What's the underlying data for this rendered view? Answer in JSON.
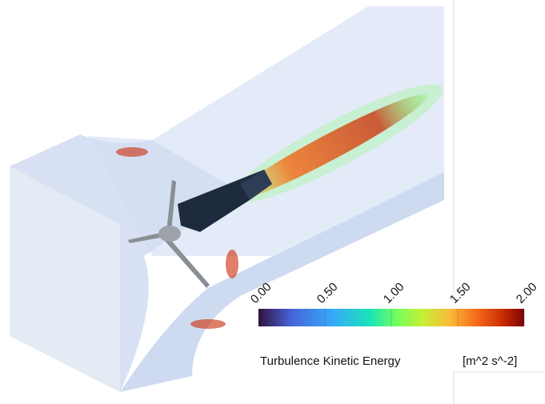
{
  "colorbar": {
    "label": "Turbulence Kinetic Energy",
    "unit": "[m^2 s^-2]",
    "range": [
      0,
      2
    ],
    "ticks": [
      {
        "value": 0,
        "label": "0.00"
      },
      {
        "value": 0.5,
        "label": "0.50"
      },
      {
        "value": 1,
        "label": "1.00"
      },
      {
        "value": 1.5,
        "label": "1.50"
      },
      {
        "value": 2,
        "label": "2.00"
      }
    ]
  }
}
